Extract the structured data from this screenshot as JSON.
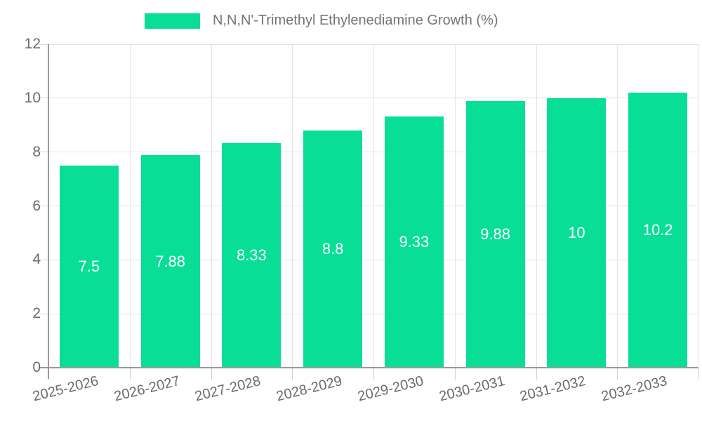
{
  "legend": {
    "label": "N,N,N'-Trimethyl Ethylenediamine Growth (%)",
    "swatch_color": "#08de96"
  },
  "chart_data": {
    "type": "bar",
    "title": "N,N,N'-Trimethyl Ethylenediamine Growth (%)",
    "categories": [
      "2025-2026",
      "2026-2027",
      "2027-2028",
      "2028-2029",
      "2029-2030",
      "2030-2031",
      "2031-2032",
      "2032-2033"
    ],
    "values": [
      7.5,
      7.88,
      8.33,
      8.8,
      9.33,
      9.88,
      10,
      10.2
    ],
    "value_labels": [
      "7.5",
      "7.88",
      "8.33",
      "8.8",
      "9.33",
      "9.88",
      "10",
      "10.2"
    ],
    "xlabel": "",
    "ylabel": "",
    "ylim": [
      0,
      12
    ],
    "yticks": [
      0,
      2,
      4,
      6,
      8,
      10,
      12
    ],
    "grid": true,
    "legend_position": "top",
    "bar_color": "#08de96",
    "value_label_color": "#ffffff",
    "axis_text_color": "#6b6b6b"
  }
}
